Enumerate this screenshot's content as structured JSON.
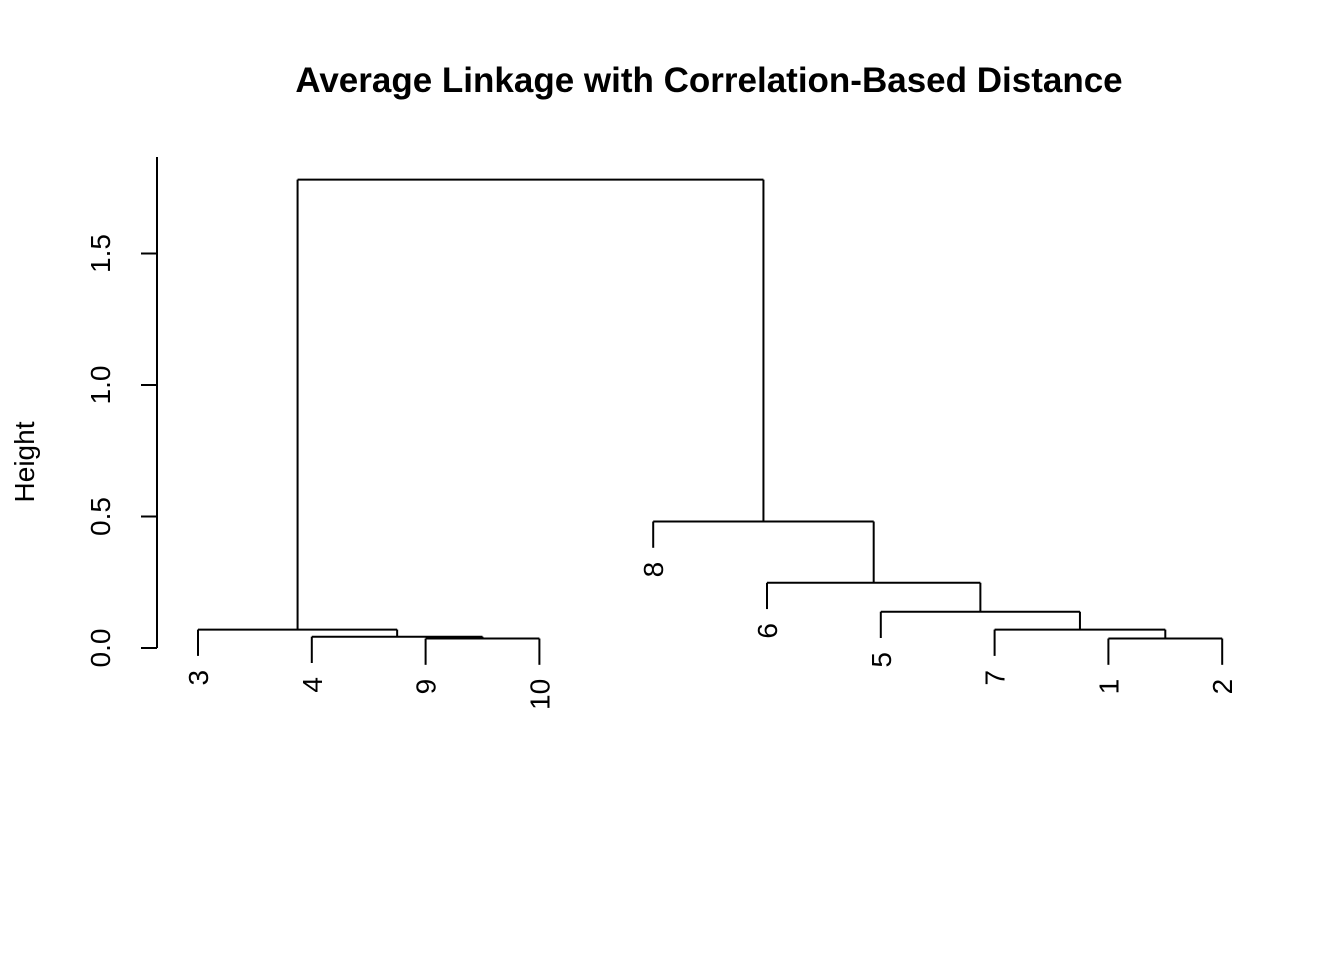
{
  "chart_data": {
    "type": "dendrogram",
    "title": "Average Linkage with Correlation-Based Distance",
    "ylabel": "Height",
    "xlabel": "",
    "ylim": [
      0,
      1.8
    ],
    "yticks": [
      0.0,
      0.5,
      1.0,
      1.5
    ],
    "ytick_labels": [
      "0.0",
      "0.5",
      "1.0",
      "1.5"
    ],
    "hang": 0.1,
    "leaf_order": [
      "3",
      "4",
      "9",
      "10",
      "8",
      "6",
      "5",
      "7",
      "1",
      "2"
    ],
    "merges": [
      {
        "id": "m1",
        "left": "1",
        "right": "2",
        "height": 0.036
      },
      {
        "id": "m2",
        "left": "9",
        "right": "10",
        "height": 0.036
      },
      {
        "id": "m3",
        "left": "4",
        "right": "m2",
        "height": 0.043
      },
      {
        "id": "m4",
        "left": "3",
        "right": "m3",
        "height": 0.07
      },
      {
        "id": "m5",
        "left": "7",
        "right": "m1",
        "height": 0.07
      },
      {
        "id": "m6",
        "left": "5",
        "right": "m5",
        "height": 0.138
      },
      {
        "id": "m7",
        "left": "6",
        "right": "m6",
        "height": 0.248
      },
      {
        "id": "m8",
        "left": "8",
        "right": "m7",
        "height": 0.481
      },
      {
        "id": "m9",
        "left": "m4",
        "right": "m8",
        "height": 1.781
      }
    ],
    "colors": {
      "line": "#000000",
      "text": "#000000",
      "background": "#ffffff"
    }
  }
}
